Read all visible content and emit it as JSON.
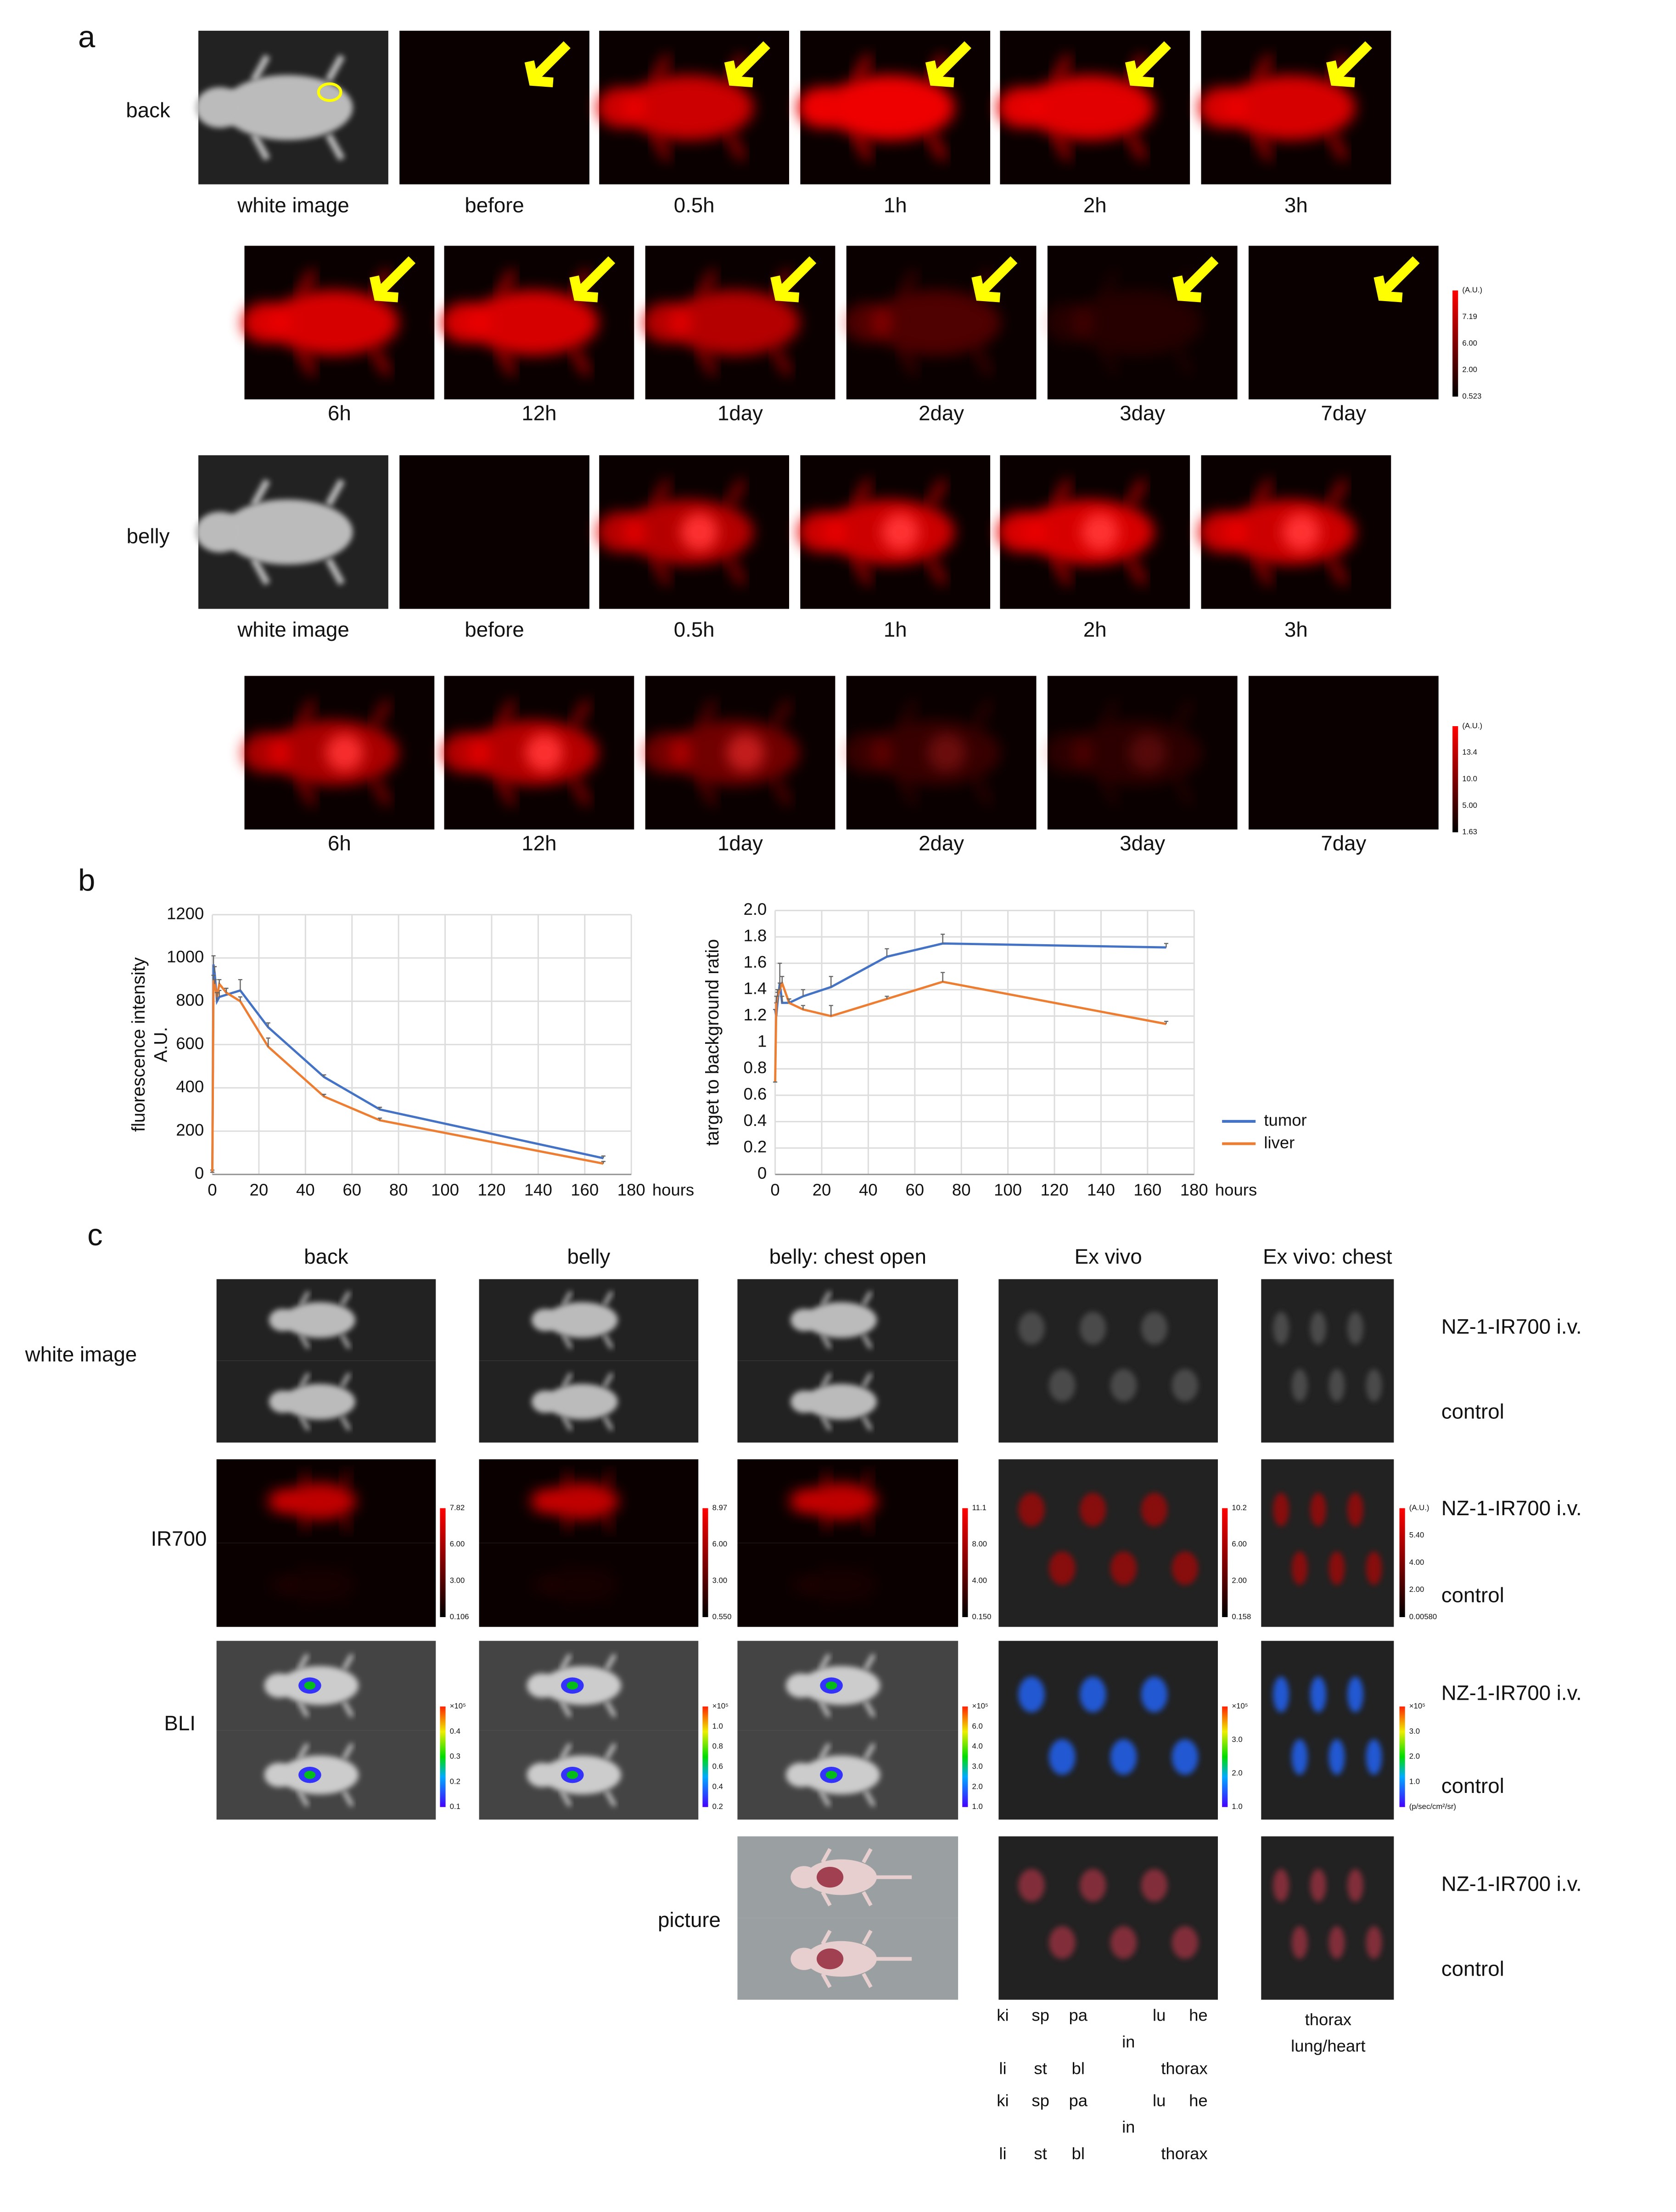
{
  "panel_a": {
    "label": "a",
    "groups": [
      {
        "name": "back",
        "timepoints": [
          "white image",
          "before",
          "0.5h",
          "1h",
          "2h",
          "3h",
          "6h",
          "12h",
          "1day",
          "2day",
          "3day",
          "7day"
        ],
        "colorbar": [
          "(A.U.)",
          "7.19",
          "6.00",
          "2.00",
          "0.523"
        ]
      },
      {
        "name": "belly",
        "timepoints": [
          "white image",
          "before",
          "0.5h",
          "1h",
          "2h",
          "3h",
          "6h",
          "12h",
          "1day",
          "2day",
          "3day",
          "7day"
        ],
        "colorbar": [
          "(A.U.)",
          "13.4",
          "10.0",
          "5.00",
          "1.63"
        ]
      }
    ]
  },
  "panel_b": {
    "label": "b"
  },
  "chart_data": [
    {
      "type": "line",
      "y_label": [
        "fluorescence intensity",
        "A.U."
      ],
      "x_label": "hours",
      "x": [
        0,
        0.5,
        1,
        2,
        3,
        6,
        12,
        24,
        48,
        72,
        168
      ],
      "series": [
        {
          "name": "tumor",
          "color": "#4472c4",
          "values": [
            20,
            970,
            930,
            800,
            820,
            830,
            850,
            680,
            450,
            300,
            75
          ],
          "errors": [
            0,
            40,
            30,
            40,
            30,
            30,
            50,
            20,
            10,
            10,
            10
          ]
        },
        {
          "name": "liver",
          "color": "#ed7d31",
          "values": [
            10,
            900,
            880,
            820,
            880,
            840,
            800,
            590,
            360,
            250,
            50
          ],
          "errors": [
            0,
            20,
            20,
            20,
            20,
            20,
            20,
            40,
            10,
            10,
            10
          ]
        }
      ],
      "xlim": [
        0,
        180
      ],
      "xticks": [
        0,
        20,
        40,
        60,
        80,
        100,
        120,
        140,
        160,
        180
      ],
      "ylim": [
        0,
        1200
      ],
      "yticks": [
        0,
        200,
        400,
        600,
        800,
        1000,
        1200
      ],
      "grid": true
    },
    {
      "type": "line",
      "y_label": [
        "target to background ratio"
      ],
      "x_label": "hours",
      "x": [
        0,
        0.5,
        1,
        2,
        3,
        6,
        12,
        24,
        48,
        72,
        168
      ],
      "series": [
        {
          "name": "tumor",
          "color": "#4472c4",
          "values": [
            1.25,
            1.2,
            1.3,
            1.45,
            1.3,
            1.3,
            1.35,
            1.42,
            1.65,
            1.75,
            1.72
          ],
          "errors": [
            0,
            0.1,
            0.08,
            0.15,
            0.05,
            0.03,
            0.05,
            0.08,
            0.06,
            0.07,
            0.03
          ]
        },
        {
          "name": "liver",
          "color": "#ed7d31",
          "values": [
            0.7,
            1.3,
            1.35,
            1.4,
            1.45,
            1.3,
            1.25,
            1.2,
            1.33,
            1.46,
            1.14
          ],
          "errors": [
            0,
            0.05,
            0.05,
            0.05,
            0.05,
            0.03,
            0.03,
            0.08,
            0.02,
            0.07,
            0.02
          ]
        }
      ],
      "xlim": [
        0,
        180
      ],
      "xticks": [
        0,
        20,
        40,
        60,
        80,
        100,
        120,
        140,
        160,
        180
      ],
      "ylim": [
        0,
        2
      ],
      "yticks": [
        0,
        0.2,
        0.4,
        0.6,
        0.8,
        1,
        1.2,
        1.4,
        1.6,
        1.8,
        {
          "value": 2,
          "label": "2.0"
        }
      ],
      "grid": true,
      "legend": "right"
    }
  ],
  "panel_c": {
    "label": "c",
    "columns": [
      "back",
      "belly",
      "belly: chest open",
      "Ex vivo",
      "Ex vivo: chest"
    ],
    "rows": [
      "white image",
      "IR700",
      "BLI",
      "picture"
    ],
    "conditions": [
      "NZ-1-IR700 i.v.",
      "control"
    ],
    "ir700_colorbars": [
      [
        "7.82",
        "6.00",
        "3.00",
        "0.106"
      ],
      [
        "8.97",
        "6.00",
        "3.00",
        "0.550"
      ],
      [
        "11.1",
        "8.00",
        "4.00",
        "0.150"
      ],
      [
        "10.2",
        "6.00",
        "2.00",
        "0.158"
      ],
      [
        "(A.U.)",
        "5.40",
        "4.00",
        "2.00",
        "0.00580"
      ]
    ],
    "bli_colorbars": [
      [
        "×10⁵",
        "0.4",
        "0.3",
        "0.2",
        "0.1"
      ],
      [
        "×10⁵",
        "1.0",
        "0.8",
        "0.6",
        "0.4",
        "0.2"
      ],
      [
        "×10⁵",
        "6.0",
        "4.0",
        "3.0",
        "2.0",
        "1.0"
      ],
      [
        "×10⁵",
        "3.0",
        "2.0",
        "1.0"
      ],
      [
        "×10⁵",
        "3.0",
        "2.0",
        "1.0",
        "(p/sec/cm²/sr)"
      ]
    ],
    "organ_labels": [
      "ki",
      "sp",
      "pa",
      "lu",
      "he",
      "in",
      "li",
      "st",
      "bl",
      "thorax"
    ],
    "thorax_labels": [
      "thorax",
      "lung/heart"
    ]
  }
}
